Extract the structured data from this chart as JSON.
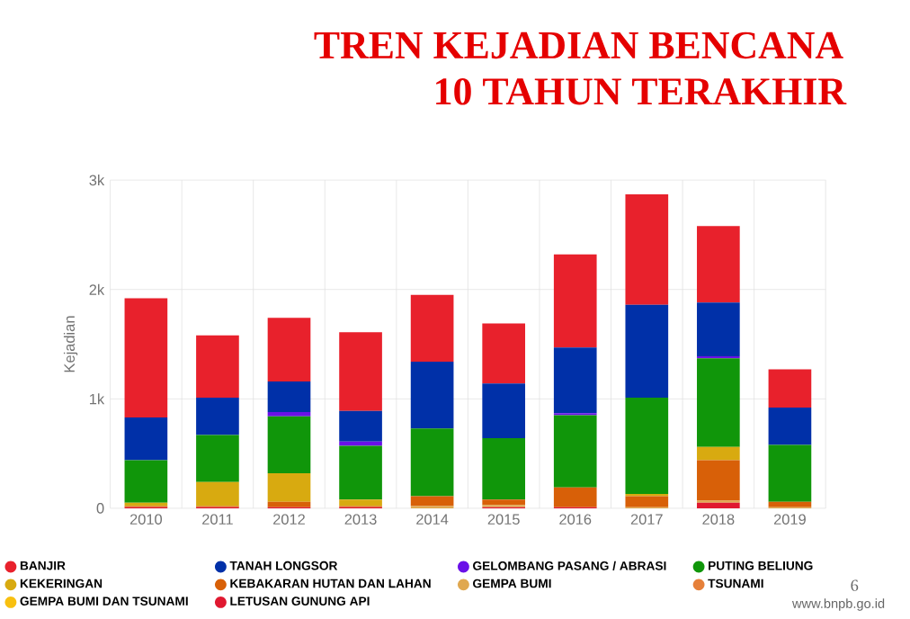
{
  "chart_data": {
    "type": "bar",
    "title": "TREN KEJADIAN BENCANA",
    "subtitle": "10 TAHUN TERAKHIR",
    "ylabel": "Kejadian",
    "categories": [
      "2010",
      "2011",
      "2012",
      "2013",
      "2014",
      "2015",
      "2016",
      "2017",
      "2018",
      "2019"
    ],
    "stacked": true,
    "ylim": [
      0,
      3000
    ],
    "yticks": [
      0,
      {
        "value": 1000,
        "label": "1k"
      },
      {
        "value": 2000,
        "label": "2k"
      },
      {
        "value": 3000,
        "label": "3k"
      }
    ],
    "grid": true,
    "legend": "bottom",
    "series": [
      {
        "name": "LETUSAN GUNUNG API",
        "color": "#e01830",
        "values": [
          10,
          10,
          10,
          10,
          0,
          10,
          10,
          0,
          50,
          0
        ]
      },
      {
        "name": "GEMPA BUMI DAN TSUNAMI",
        "color": "#f8c010",
        "values": [
          0,
          0,
          0,
          0,
          0,
          0,
          0,
          0,
          0,
          0
        ]
      },
      {
        "name": "TSUNAMI",
        "color": "#e6803a",
        "values": [
          0,
          0,
          0,
          0,
          0,
          0,
          0,
          0,
          0,
          0
        ]
      },
      {
        "name": "GEMPA BUMI",
        "color": "#e0a850",
        "values": [
          0,
          0,
          0,
          0,
          20,
          20,
          0,
          10,
          20,
          10
        ]
      },
      {
        "name": "KEBAKARAN HUTAN DAN LAHAN",
        "color": "#d86008",
        "values": [
          10,
          10,
          50,
          10,
          90,
          50,
          180,
          100,
          370,
          50
        ]
      },
      {
        "name": "KEKERINGAN",
        "color": "#d8aa10",
        "values": [
          30,
          220,
          260,
          60,
          0,
          0,
          0,
          20,
          120,
          0
        ]
      },
      {
        "name": "PUTING BELIUNG",
        "color": "#10960a",
        "values": [
          390,
          430,
          520,
          490,
          620,
          560,
          660,
          880,
          810,
          520
        ]
      },
      {
        "name": "GELOMBANG PASANG / ABRASI",
        "color": "#6a10e8",
        "values": [
          0,
          0,
          40,
          40,
          0,
          0,
          20,
          0,
          20,
          0
        ]
      },
      {
        "name": "TANAH LONGSOR",
        "color": "#0030a8",
        "values": [
          390,
          340,
          280,
          280,
          610,
          500,
          600,
          850,
          490,
          340
        ]
      },
      {
        "name": "BANJIR",
        "color": "#e8212c",
        "values": [
          1090,
          570,
          580,
          720,
          610,
          550,
          850,
          1010,
          700,
          350
        ]
      }
    ],
    "annotations": [
      "6",
      "www.bnpb.go.id"
    ]
  }
}
